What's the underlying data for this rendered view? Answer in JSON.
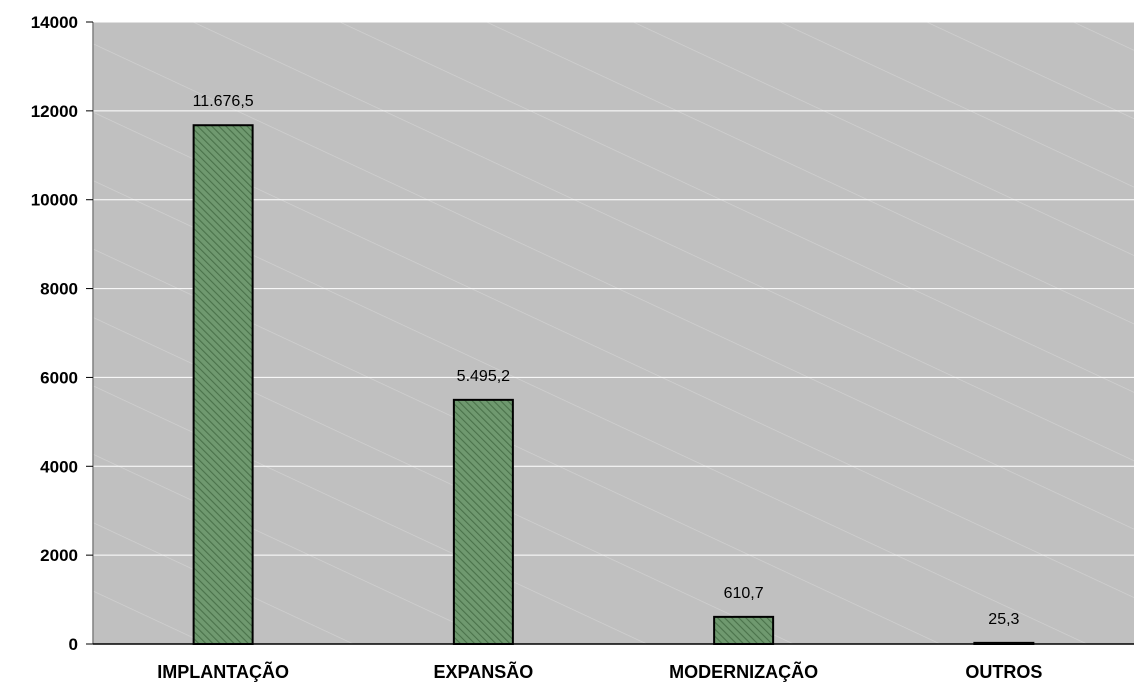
{
  "chart_data": {
    "type": "bar",
    "title": "",
    "xlabel": "",
    "ylabel": "",
    "categories": [
      "IMPLANTAÇÃO",
      "EXPANSÃO",
      "MODERNIZAÇÃO",
      "OUTROS"
    ],
    "values": [
      11676.5,
      5495.2,
      610.7,
      25.3
    ],
    "data_labels": [
      "11.676,5",
      "5.495,2",
      "610,7",
      "25,3"
    ],
    "ylim": [
      0,
      14000
    ],
    "yticks": [
      0,
      2000,
      4000,
      6000,
      8000,
      10000,
      12000,
      14000
    ],
    "ytick_labels": [
      "0",
      "2000",
      "4000",
      "6000",
      "8000",
      "10000",
      "12000",
      "14000"
    ],
    "grid": true,
    "legend": "none",
    "colors": {
      "plot_background": "#c0c0c0",
      "bar_fill": "#5e8a5e",
      "bar_stroke": "#000000",
      "gridline": "#ffffff"
    }
  }
}
